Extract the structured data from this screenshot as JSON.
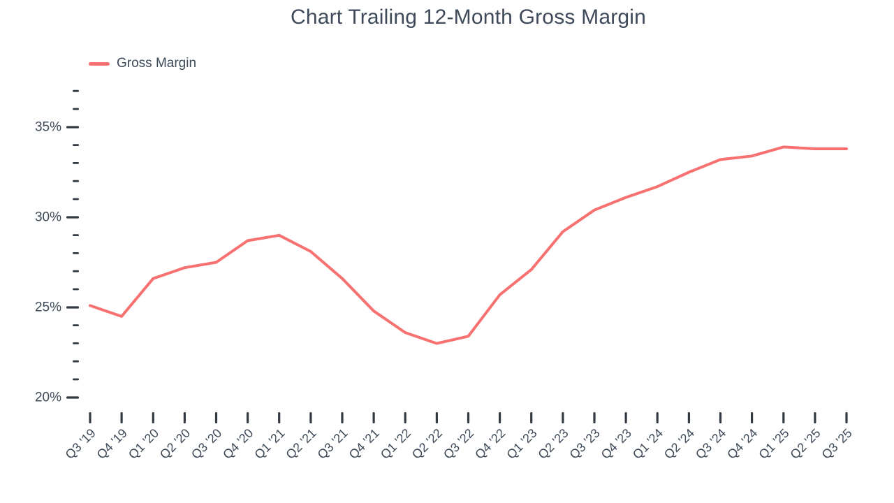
{
  "chart_data": {
    "type": "line",
    "title": "Chart Trailing 12-Month Gross Margin",
    "xlabel": "",
    "ylabel": "",
    "categories": [
      "Q3 '19",
      "Q4 '19",
      "Q1 '20",
      "Q2 '20",
      "Q3 '20",
      "Q4 '20",
      "Q1 '21",
      "Q2 '21",
      "Q3 '21",
      "Q4 '21",
      "Q1 '22",
      "Q2 '22",
      "Q3 '22",
      "Q4 '22",
      "Q1 '23",
      "Q2 '23",
      "Q3 '23",
      "Q4 '23",
      "Q1 '24",
      "Q2 '24",
      "Q3 '24",
      "Q4 '24",
      "Q1 '25",
      "Q2 '25",
      "Q3 '25"
    ],
    "series": [
      {
        "name": "Gross Margin",
        "values": [
          25.1,
          24.5,
          26.6,
          27.2,
          27.5,
          28.7,
          29.0,
          28.1,
          26.6,
          24.8,
          23.6,
          23.0,
          23.4,
          25.7,
          27.1,
          29.2,
          30.4,
          31.1,
          31.7,
          32.5,
          33.2,
          33.4,
          33.9,
          33.8,
          33.8
        ]
      }
    ],
    "ylim": [
      20,
      37
    ],
    "y_major_ticks": [
      20,
      25,
      30,
      35
    ],
    "y_tick_labels": [
      "20%",
      "25%",
      "30%",
      "35%"
    ],
    "y_tick_suffix": "%",
    "grid": false,
    "legend_position": "top-left",
    "colors": {
      "line": "#f87171",
      "text": "#3e4a59",
      "tick": "#333a44",
      "background": "#ffffff"
    }
  }
}
